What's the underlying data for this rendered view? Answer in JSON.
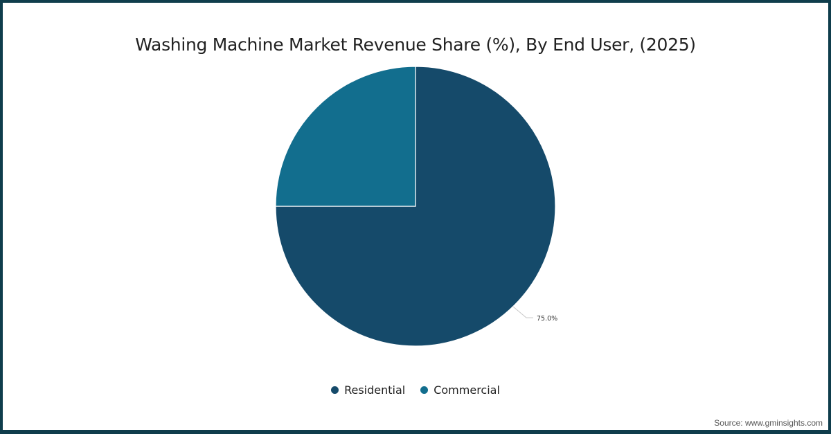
{
  "chart_data": {
    "type": "pie",
    "title": "Washing Machine Market Revenue Share (%), By End User, (2025)",
    "categories": [
      "Residential",
      "Commercial"
    ],
    "values": [
      75.0,
      25.0
    ],
    "colors": [
      "#154a6a",
      "#126e8e"
    ],
    "data_labels": [
      {
        "category": "Residential",
        "text": "75.0%"
      }
    ],
    "start_angle_deg": 0,
    "direction": "clockwise",
    "legend_position": "bottom"
  },
  "header": {
    "title": "Washing Machine Market Revenue Share (%), By End User, (2025)"
  },
  "legend": {
    "items": [
      {
        "label": "Residential",
        "color": "#154a6a"
      },
      {
        "label": "Commercial",
        "color": "#126e8e"
      }
    ]
  },
  "labels": {
    "residential_pct": "75.0%"
  },
  "footer": {
    "source": "Source: www.gminsights.com"
  },
  "theme": {
    "frame_color": "#0f3d4c"
  }
}
